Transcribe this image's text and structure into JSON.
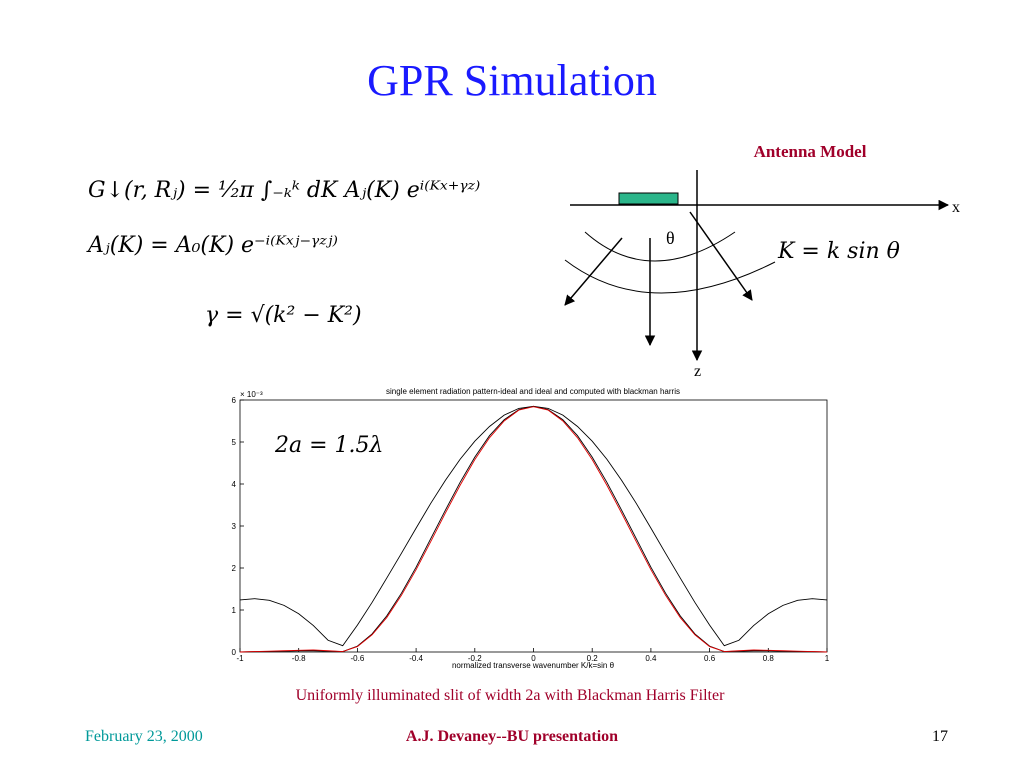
{
  "slide": {
    "title": "GPR Simulation",
    "equations": [
      "G↓(r, Rⱼ) = ¹⁄₂π ∫₋ₖᵏ dK Aⱼ(K) eⁱ⁽ᴷˣ⁺ᵞᶻ⁾",
      "Aⱼ(K) = A₀(K) e⁻ⁱ⁽ᴷˣʲ⁻ᵞᶻʲ⁾",
      "γ = √(k² − K²)"
    ],
    "antenna_model": {
      "title": "Antenna Model",
      "x_label": "x",
      "z_label": "z",
      "theta_label": "θ",
      "relation": "K = k sin θ"
    },
    "caption": "Uniformly illuminated slit of width 2a with Blackman Harris Filter",
    "footer": {
      "date": "February 23, 2000",
      "author": "A.J. Devaney--BU  presentation",
      "page": 17
    }
  },
  "chart_data": {
    "type": "line",
    "title": "single element radiation pattern-ideal and ideal and computed with blackman harris",
    "x_label": "normalized transverse wavenumber K/k=sin θ",
    "y_multiplier": "× 10⁻³",
    "annotation": "2a = 1.5λ",
    "x": [
      -1,
      -0.95,
      -0.9,
      -0.85,
      -0.8,
      -0.75,
      -0.7,
      -0.65,
      -0.6,
      -0.55,
      -0.5,
      -0.45,
      -0.4,
      -0.35,
      -0.3,
      -0.25,
      -0.2,
      -0.15,
      -0.1,
      -0.05,
      0,
      0.05,
      0.1,
      0.15,
      0.2,
      0.25,
      0.3,
      0.35,
      0.4,
      0.45,
      0.5,
      0.55,
      0.6,
      0.65,
      0.7,
      0.75,
      0.8,
      0.85,
      0.9,
      0.95,
      1
    ],
    "series": [
      {
        "color": "#000000",
        "values": [
          1.24,
          1.27,
          1.23,
          1.11,
          0.91,
          0.63,
          0.28,
          0.15,
          0.64,
          1.18,
          1.76,
          2.35,
          2.95,
          3.54,
          4.09,
          4.59,
          5.02,
          5.37,
          5.64,
          5.8,
          5.85,
          5.8,
          5.64,
          5.37,
          5.02,
          4.59,
          4.09,
          3.54,
          2.95,
          2.35,
          1.76,
          1.18,
          0.64,
          0.15,
          0.28,
          0.63,
          0.91,
          1.11,
          1.23,
          1.27,
          1.24
        ]
      },
      {
        "color": "#000000",
        "values": [
          0,
          0.01,
          0.01,
          0.02,
          0.03,
          0.03,
          0.02,
          0.01,
          0.14,
          0.43,
          0.86,
          1.4,
          2.02,
          2.7,
          3.38,
          4.04,
          4.64,
          5.15,
          5.53,
          5.77,
          5.85,
          5.77,
          5.53,
          5.15,
          4.64,
          4.04,
          3.38,
          2.7,
          2.02,
          1.4,
          0.86,
          0.43,
          0.14,
          0.01,
          0.02,
          0.03,
          0.03,
          0.02,
          0.01,
          0.01,
          0
        ]
      },
      {
        "color": "#e00000",
        "values": [
          0,
          0.01,
          0.02,
          0.03,
          0.04,
          0.05,
          0.03,
          0.01,
          0.13,
          0.41,
          0.82,
          1.35,
          1.96,
          2.63,
          3.31,
          3.97,
          4.58,
          5.1,
          5.5,
          5.76,
          5.84,
          5.76,
          5.5,
          5.1,
          4.58,
          3.97,
          3.31,
          2.63,
          1.96,
          1.35,
          0.82,
          0.41,
          0.13,
          0.01,
          0.03,
          0.05,
          0.04,
          0.03,
          0.02,
          0.01,
          0
        ]
      }
    ],
    "xlim": [
      -1,
      1
    ],
    "xticks": [
      -1,
      -0.8,
      -0.6,
      -0.4,
      -0.2,
      0,
      0.2,
      0.4,
      0.6,
      0.8,
      1
    ],
    "ylim": [
      0,
      6
    ],
    "yticks": [
      0,
      1,
      2,
      3,
      4,
      5,
      6
    ]
  }
}
